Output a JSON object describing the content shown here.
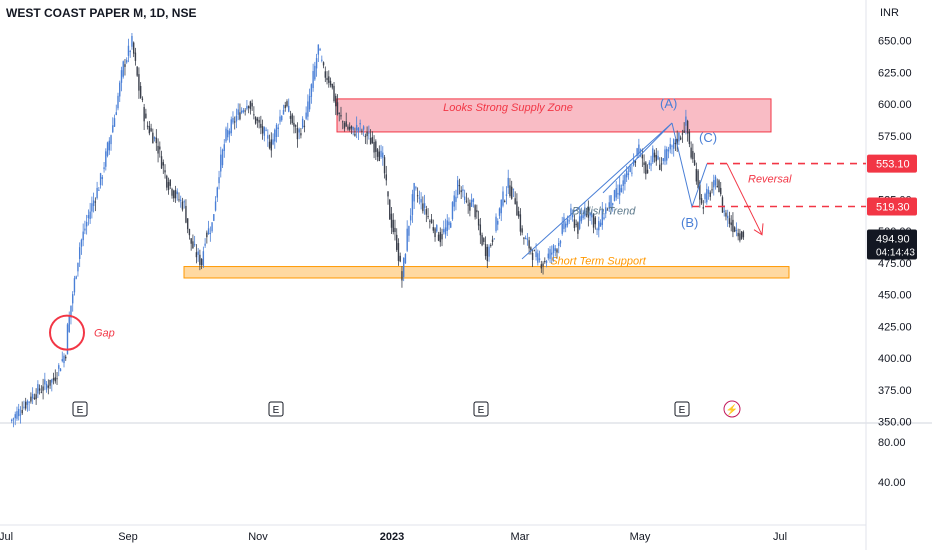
{
  "header": {
    "title": "WEST COAST PAPER M, 1D, NSE",
    "currency": "INR"
  },
  "chart_data": {
    "type": "candlestick",
    "title": "WEST COAST PAPER M, 1D, NSE",
    "ylabel": "INR",
    "ylim": [
      350,
      660
    ],
    "y_ticks": [
      "650.00",
      "625.00",
      "600.00",
      "575.00",
      "550.00",
      "525.00",
      "500.00",
      "475.00",
      "450.00",
      "425.00",
      "400.00",
      "375.00",
      "350.00"
    ],
    "x_ticks": [
      "Jul",
      "Sep",
      "Nov",
      "2023",
      "Mar",
      "May",
      "Jul"
    ],
    "last_price": "494.90",
    "countdown": "04:14:43",
    "level_tags": [
      {
        "label": "553.10",
        "value": 553.1,
        "color": "#f23645"
      },
      {
        "label": "519.30",
        "value": 519.3,
        "color": "#f23645"
      }
    ],
    "price_path": [
      [
        0,
        350
      ],
      [
        14,
        372
      ],
      [
        25,
        383
      ],
      [
        32,
        405
      ],
      [
        33,
        423
      ],
      [
        40,
        488
      ],
      [
        45,
        512
      ],
      [
        52,
        540
      ],
      [
        60,
        590
      ],
      [
        65,
        630
      ],
      [
        70,
        648
      ],
      [
        74,
        612
      ],
      [
        78,
        585
      ],
      [
        84,
        570
      ],
      [
        90,
        540
      ],
      [
        95,
        528
      ],
      [
        100,
        520
      ],
      [
        103,
        494
      ],
      [
        106,
        484
      ],
      [
        110,
        475
      ],
      [
        112,
        496
      ],
      [
        116,
        505
      ],
      [
        120,
        548
      ],
      [
        124,
        575
      ],
      [
        130,
        590
      ],
      [
        137,
        602
      ],
      [
        140,
        590
      ],
      [
        145,
        578
      ],
      [
        150,
        568
      ],
      [
        154,
        586
      ],
      [
        158,
        600
      ],
      [
        165,
        575
      ],
      [
        170,
        590
      ],
      [
        177,
        644
      ],
      [
        180,
        625
      ],
      [
        184,
        618
      ],
      [
        188,
        592
      ],
      [
        193,
        582
      ],
      [
        197,
        578
      ],
      [
        200,
        582
      ],
      [
        205,
        575
      ],
      [
        210,
        566
      ],
      [
        214,
        556
      ],
      [
        218,
        512
      ],
      [
        222,
        490
      ],
      [
        225,
        462
      ],
      [
        228,
        498
      ],
      [
        232,
        532
      ],
      [
        237,
        520
      ],
      [
        242,
        505
      ],
      [
        247,
        495
      ],
      [
        252,
        505
      ],
      [
        257,
        538
      ],
      [
        262,
        520
      ],
      [
        266,
        522
      ],
      [
        270,
        496
      ],
      [
        274,
        482
      ],
      [
        278,
        500
      ],
      [
        282,
        522
      ],
      [
        286,
        536
      ],
      [
        290,
        525
      ],
      [
        294,
        496
      ],
      [
        298,
        488
      ],
      [
        302,
        478
      ],
      [
        306,
        475
      ],
      [
        310,
        482
      ],
      [
        314,
        488
      ],
      [
        318,
        505
      ],
      [
        322,
        512
      ],
      [
        326,
        502
      ],
      [
        330,
        518
      ],
      [
        334,
        512
      ],
      [
        337,
        500
      ],
      [
        341,
        515
      ],
      [
        345,
        523
      ],
      [
        349,
        530
      ],
      [
        353,
        540
      ],
      [
        357,
        550
      ],
      [
        361,
        565
      ],
      [
        365,
        548
      ],
      [
        369,
        560
      ],
      [
        373,
        553
      ],
      [
        377,
        560
      ],
      [
        381,
        568
      ],
      [
        385,
        576
      ],
      [
        388,
        585
      ],
      [
        391,
        560
      ],
      [
        394,
        545
      ],
      [
        397,
        520
      ],
      [
        400,
        528
      ],
      [
        403,
        532
      ],
      [
        406,
        540
      ],
      [
        409,
        518
      ],
      [
        412,
        510
      ],
      [
        415,
        504
      ],
      [
        418,
        500
      ],
      [
        421,
        495
      ]
    ],
    "zones": [
      {
        "label": "Looks Strong Supply Zone",
        "range": [
          578,
          604
        ]
      },
      {
        "label": "Short Term Support",
        "range": [
          463,
          472
        ]
      }
    ],
    "annotations": {
      "gap": "Gap",
      "bullish_trend": "Bullish Trend",
      "reversal": "Reversal",
      "wave_a": "(A)",
      "wave_b": "(B)",
      "wave_c": "(C)"
    },
    "earnings_marker": "E",
    "dividend_marker": "⚡",
    "indicator_pane": {
      "y_ticks": [
        "80.00",
        "40.00"
      ]
    }
  }
}
